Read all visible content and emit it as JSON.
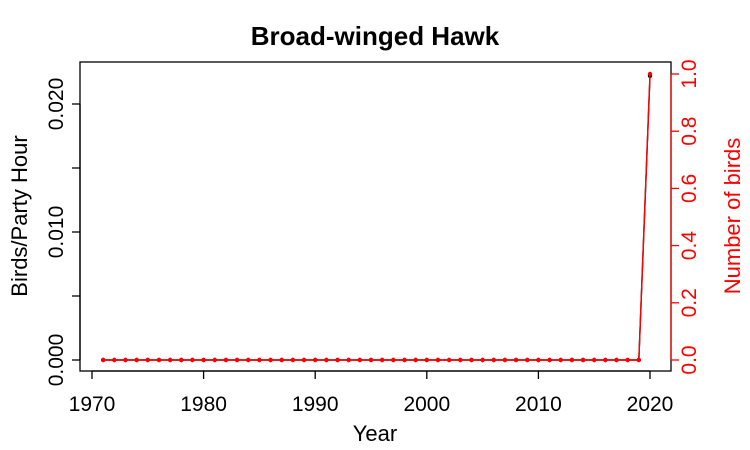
{
  "chart_data": {
    "type": "line",
    "title": "Broad-winged Hawk",
    "xlabel": "Year",
    "ylabel": "Birds/Party Hour",
    "y2label": "Number of birds",
    "xlim": [
      1970,
      2020
    ],
    "ylim": [
      0,
      0.022
    ],
    "y2lim": [
      0,
      1
    ],
    "xticks": [
      1970,
      1980,
      1990,
      2000,
      2010,
      2020
    ],
    "yticks": [
      0.0,
      0.005,
      0.01,
      0.015,
      0.02
    ],
    "yticklabels": [
      "0.000",
      "",
      "0.010",
      "",
      "0.020"
    ],
    "y2ticks": [
      0.0,
      0.2,
      0.4,
      0.6,
      0.8,
      1.0
    ],
    "y2ticklabels": [
      "0.0",
      "0.2",
      "0.4",
      "0.6",
      "0.8",
      "1.0"
    ],
    "grid": false,
    "colors": {
      "primary": "#000000",
      "secondary": "#ff0000"
    },
    "x": [
      1971,
      1972,
      1973,
      1974,
      1975,
      1976,
      1977,
      1978,
      1979,
      1980,
      1981,
      1982,
      1983,
      1984,
      1985,
      1986,
      1987,
      1988,
      1989,
      1990,
      1991,
      1992,
      1993,
      1994,
      1995,
      1996,
      1997,
      1998,
      1999,
      2000,
      2001,
      2002,
      2003,
      2004,
      2005,
      2006,
      2007,
      2008,
      2009,
      2010,
      2011,
      2012,
      2013,
      2014,
      2015,
      2016,
      2017,
      2018,
      2019,
      2020
    ],
    "series": [
      {
        "axis": "left",
        "color": "#000000",
        "values": [
          0,
          0,
          0,
          0,
          0,
          0,
          0,
          0,
          0,
          0,
          0,
          0,
          0,
          0,
          0,
          0,
          0,
          0,
          0,
          0,
          0,
          0,
          0,
          0,
          0,
          0,
          0,
          0,
          0,
          0,
          0,
          0,
          0,
          0,
          0,
          0,
          0,
          0,
          0,
          0,
          0,
          0,
          0,
          0,
          0,
          0,
          0,
          0,
          0,
          0.0222
        ]
      },
      {
        "axis": "right",
        "color": "#ff0000",
        "values": [
          0,
          0,
          0,
          0,
          0,
          0,
          0,
          0,
          0,
          0,
          0,
          0,
          0,
          0,
          0,
          0,
          0,
          0,
          0,
          0,
          0,
          0,
          0,
          0,
          0,
          0,
          0,
          0,
          0,
          0,
          0,
          0,
          0,
          0,
          0,
          0,
          0,
          0,
          0,
          0,
          0,
          0,
          0,
          0,
          0,
          0,
          0,
          0,
          0,
          1
        ]
      }
    ]
  }
}
